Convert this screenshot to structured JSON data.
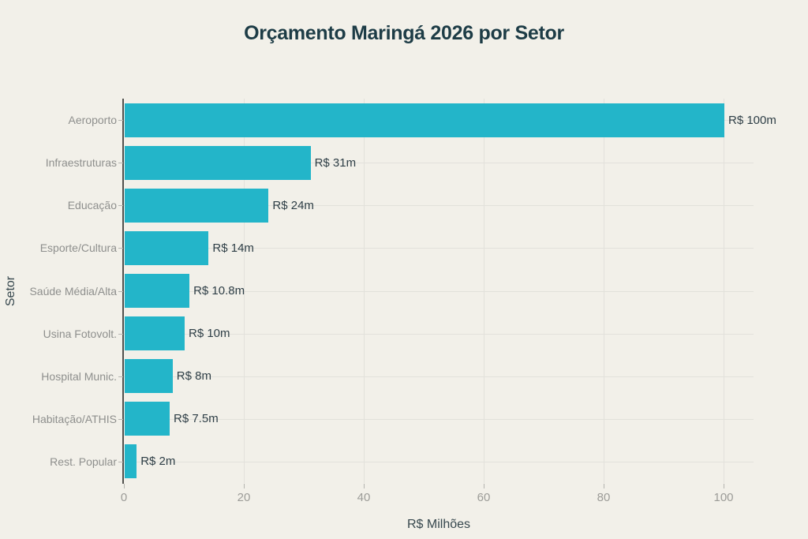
{
  "chart_data": {
    "type": "bar",
    "orientation": "horizontal",
    "title": "Orçamento Maringá 2026 por Setor",
    "xlabel": "R$ Milhões",
    "ylabel": "Setor",
    "categories": [
      "Aeroporto",
      "Infraestruturas",
      "Educação",
      "Esporte/Cultura",
      "Saúde Média/Alta",
      "Usina Fotovolt.",
      "Hospital Munic.",
      "Habitação/ATHIS",
      "Rest. Popular"
    ],
    "values": [
      100,
      31,
      24,
      14,
      10.8,
      10,
      8,
      7.5,
      2
    ],
    "bar_labels": [
      "R$ 100m",
      "R$ 31m",
      "R$ 24m",
      "R$ 14m",
      "R$ 10.8m",
      "R$ 10m",
      "R$ 8m",
      "R$ 7.5m",
      "R$ 2m"
    ],
    "xticks": [
      0,
      20,
      40,
      60,
      80,
      100
    ],
    "xlim": [
      0,
      105
    ],
    "grid": true,
    "legend": false,
    "colors": {
      "background": "#f2f0e9",
      "bar": "#23b5c9",
      "title": "#1d3c46",
      "axis_title": "#36474d",
      "value_label": "#2e3e46",
      "category_label": "#8e8f8d",
      "tick_label": "#9c9c98",
      "gridline": "#e2e1db",
      "axis_line": "#50514e",
      "tick_mark": "#b5b5b0"
    }
  }
}
